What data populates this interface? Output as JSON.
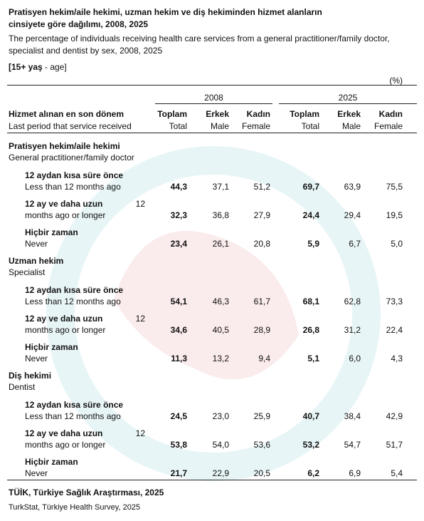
{
  "header": {
    "title_lines": [
      "Pratisyen hekim/aile hekimi, uzman hekim ve diş hekiminden hizmet alanların",
      "cinsiyete göre dağılımı, 2008,  2025"
    ],
    "subtitle_lines": [
      "The percentage of individuals receiving health care services from a general practitioner/family doctor,",
      "specialist and dentist by sex, 2008,  2025"
    ],
    "population": {
      "bold": "[15+ yaş",
      "rest": " - age]"
    },
    "unit": "(%)"
  },
  "table": {
    "years": [
      "2008",
      "2025"
    ],
    "stub_header": {
      "tr": "Hizmet alınan en son dönem",
      "en": "Last period that service received"
    },
    "columns": [
      {
        "tr": "Toplam",
        "en": "Total"
      },
      {
        "tr": "Erkek",
        "en": "Male"
      },
      {
        "tr": "Kadın",
        "en": "Female"
      }
    ],
    "sections": [
      {
        "tr": "Pratisyen hekim/aile hekimi",
        "en": "General practitioner/family doctor",
        "rows": [
          {
            "tr": "12 aydan kısa süre önce",
            "en": "Less than 12 months ago",
            "values": [
              "44,3",
              "37,1",
              "51,2",
              "69,7",
              "63,9",
              "75,5"
            ]
          },
          {
            "tr": "12 ay ve daha uzun",
            "note": "12",
            "en": "months ago or longer",
            "values": [
              "32,3",
              "36,8",
              "27,9",
              "24,4",
              "29,4",
              "19,5"
            ]
          },
          {
            "tr": "Hiçbir zaman",
            "en": "Never",
            "values": [
              "23,4",
              "26,1",
              "20,8",
              "5,9",
              "6,7",
              "5,0"
            ]
          }
        ]
      },
      {
        "tr": "Uzman hekim",
        "en": "Specialist",
        "rows": [
          {
            "tr": "12 aydan kısa süre önce",
            "en": "Less than 12 months ago",
            "values": [
              "54,1",
              "46,3",
              "61,7",
              "68,1",
              "62,8",
              "73,3"
            ]
          },
          {
            "tr": "12 ay ve daha uzun",
            "note": "12",
            "en": "months ago or longer",
            "values": [
              "34,6",
              "40,5",
              "28,9",
              "26,8",
              "31,2",
              "22,4"
            ]
          },
          {
            "tr": "Hiçbir zaman",
            "en": "Never",
            "values": [
              "11,3",
              "13,2",
              "9,4",
              "5,1",
              "6,0",
              "4,3"
            ]
          }
        ]
      },
      {
        "tr": "Diş hekimi",
        "en": "Dentist",
        "rows": [
          {
            "tr": "12 aydan kısa süre önce",
            "en": "Less than 12 months ago",
            "values": [
              "24,5",
              "23,0",
              "25,9",
              "40,7",
              "38,4",
              "42,9"
            ]
          },
          {
            "tr": "12 ay ve daha uzun",
            "note": "12",
            "en": "months ago or longer",
            "values": [
              "53,8",
              "54,0",
              "53,6",
              "53,2",
              "54,7",
              "51,7"
            ]
          },
          {
            "tr": "Hiçbir zaman",
            "en": "Never",
            "values": [
              "21,7",
              "22,9",
              "20,5",
              "6,2",
              "6,9",
              "5,4"
            ]
          }
        ]
      }
    ]
  },
  "footer": {
    "source_tr": "TÜİK, Türkiye Sağlık Araştırması, 2025",
    "source_en": "TurkStat, Türkiye Health Survey, 2025"
  }
}
